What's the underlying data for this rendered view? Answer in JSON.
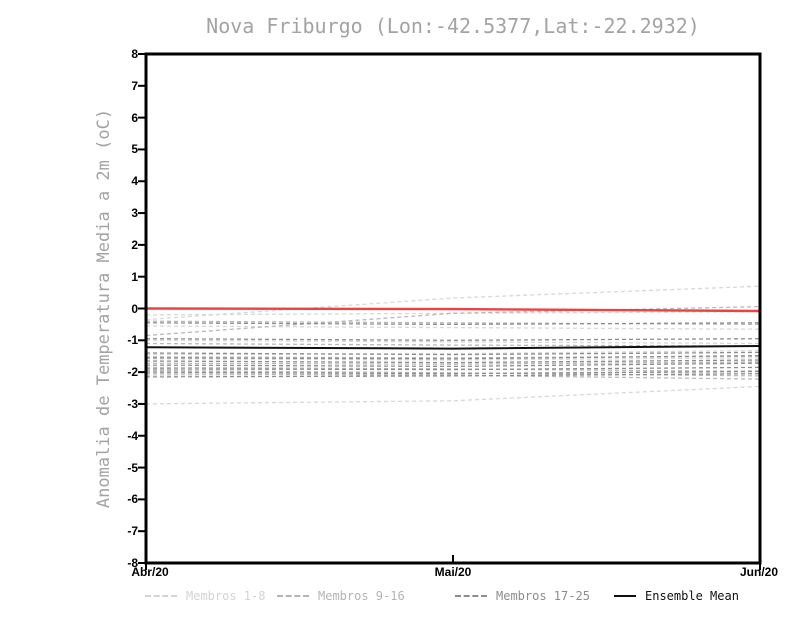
{
  "header": {
    "title": "Nova Friburgo (Lon:-42.5377,Lat:-22.2932)"
  },
  "chart_data": {
    "type": "line",
    "title": "Nova Friburgo (Lon:-42.5377,Lat:-22.2932)",
    "xlabel": "",
    "ylabel": "Anomalia de Temperatura Media a 2m (oC)",
    "ylim": [
      -8,
      8
    ],
    "yticks": [
      8,
      7,
      6,
      5,
      4,
      3,
      2,
      1,
      0,
      -1,
      -2,
      -3,
      -4,
      -5,
      -6,
      -7,
      -8
    ],
    "x_categories": [
      "Abr/20",
      "Mai/20",
      "Jun/20"
    ],
    "grid": false,
    "legend_position": "bottom",
    "series": [
      {
        "name": "Membros 1-8",
        "style": "dashed",
        "color": "#d8d8d8",
        "members": [
          [
            -0.2,
            -0.15,
            -0.1
          ],
          [
            -0.35,
            0.33,
            0.7
          ],
          [
            -0.55,
            -0.6,
            -0.65
          ],
          [
            -1.0,
            -1.05,
            -1.1
          ],
          [
            -1.45,
            -1.42,
            -1.32
          ],
          [
            -1.58,
            -1.62,
            -1.55
          ],
          [
            -2.1,
            -2.05,
            -1.95
          ],
          [
            -3.0,
            -2.9,
            -2.45
          ]
        ]
      },
      {
        "name": "Membros 9-16",
        "style": "dashed",
        "color": "#b9b9b9",
        "members": [
          [
            -0.85,
            -0.15,
            0.06
          ],
          [
            -0.4,
            -0.45,
            -0.5
          ],
          [
            -1.1,
            -1.15,
            -1.18
          ],
          [
            -1.52,
            -1.55,
            -1.5
          ],
          [
            -1.72,
            -1.75,
            -1.68
          ],
          [
            -1.85,
            -1.9,
            -1.98
          ],
          [
            -1.95,
            -2.02,
            -2.12
          ],
          [
            -2.05,
            -2.1,
            -2.22
          ]
        ]
      },
      {
        "name": "Membros 17-25",
        "style": "dashed",
        "color": "#8d8d8d",
        "members": [
          [
            -0.45,
            -0.5,
            -0.45
          ],
          [
            -0.95,
            -1.0,
            -0.95
          ],
          [
            -1.4,
            -1.45,
            -1.38
          ],
          [
            -1.55,
            -1.58,
            -1.48
          ],
          [
            -1.65,
            -1.7,
            -1.62
          ],
          [
            -1.78,
            -1.82,
            -1.72
          ],
          [
            -1.9,
            -1.92,
            -1.85
          ],
          [
            -2.0,
            -2.05,
            -1.98
          ],
          [
            -2.15,
            -2.12,
            -2.05
          ]
        ]
      },
      {
        "name": "Ensemble Mean",
        "style": "solid",
        "color": "#111111",
        "values": [
          -1.22,
          -1.26,
          -1.18
        ]
      },
      {
        "name": "",
        "id": "red-line",
        "style": "solid",
        "color": "#f04141",
        "values": [
          0.0,
          -0.02,
          -0.08
        ]
      }
    ]
  },
  "legend": {
    "items": [
      {
        "label": "Membros 1-8",
        "color": "#d3d3d3",
        "line": "dashed"
      },
      {
        "label": "Membros 9-16",
        "color": "#b4b4b4",
        "line": "dashed"
      },
      {
        "label": "Membros 17-25",
        "color": "#8d8d8d",
        "line": "dashed"
      },
      {
        "label": "Ensemble Mean",
        "color": "#111111",
        "line": "solid"
      }
    ]
  },
  "colors": {
    "axis": "#000000",
    "title_text": "#a3a3a3",
    "ylabel_text": "#a3a3a3",
    "red_line": "#f04141",
    "mean_line": "#111111"
  }
}
